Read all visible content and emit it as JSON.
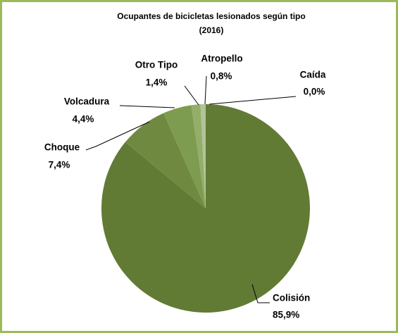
{
  "chart_data": {
    "type": "pie",
    "title": [
      "Ocupantes de bicicletas lesionados según tipo",
      "(2016)"
    ],
    "categories": [
      "Colisión",
      "Choque",
      "Volcadura",
      "Otro Tipo",
      "Atropello",
      "Caída"
    ],
    "values": [
      85.9,
      7.4,
      4.4,
      1.4,
      0.8,
      0.0
    ],
    "value_labels": [
      "85,9%",
      "7,4%",
      "4,4%",
      "1,4%",
      "0,8%",
      "0,0%"
    ],
    "colors": [
      "#617b35",
      "#6f8a40",
      "#7e9c4f",
      "#93ae69",
      "#b3c398",
      "#cfd9bd"
    ]
  }
}
